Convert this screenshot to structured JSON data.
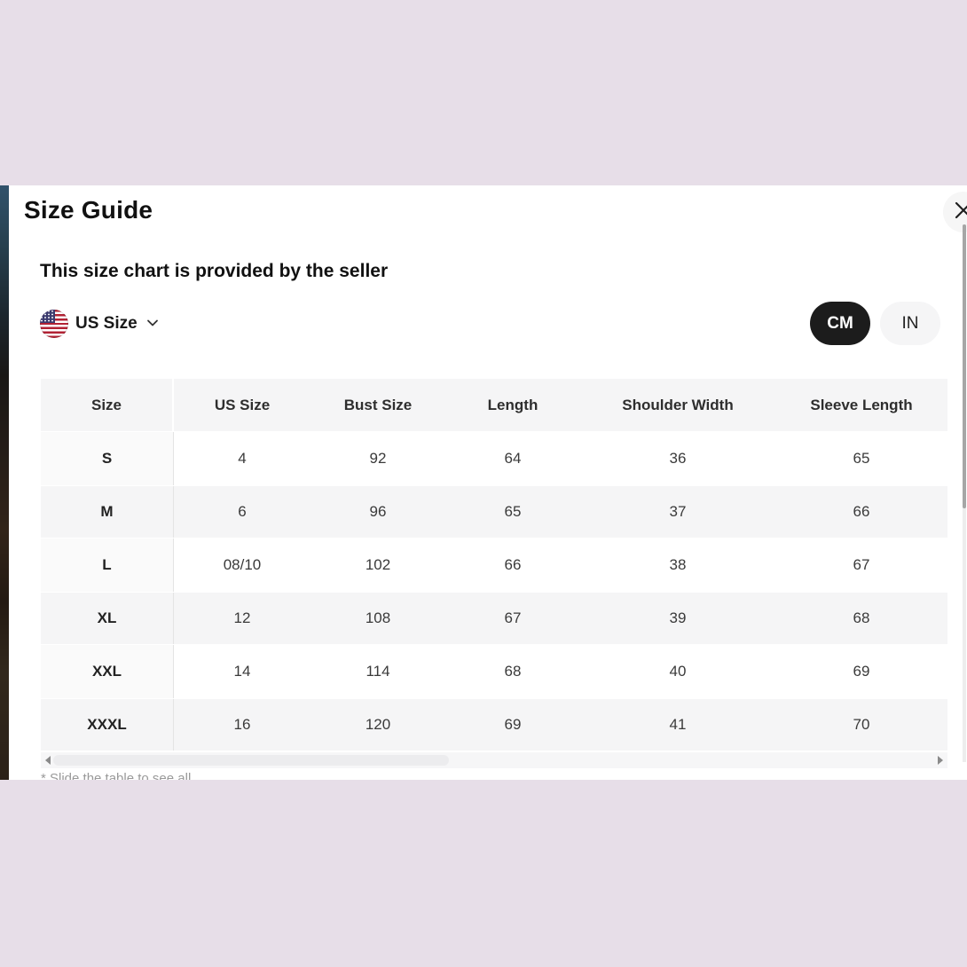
{
  "modal": {
    "title": "Size Guide",
    "subtitle": "This size chart is provided by the seller",
    "region_selector": {
      "label": "US Size",
      "flag_icon": "us-flag-icon",
      "chevron_icon": "chevron-down-icon"
    },
    "unit_toggle": {
      "options": [
        "CM",
        "IN"
      ],
      "selected": "CM"
    },
    "table": {
      "headers": [
        "Size",
        "US Size",
        "Bust Size",
        "Length",
        "Shoulder Width",
        "Sleeve Length"
      ],
      "rows": [
        [
          "S",
          "4",
          "92",
          "64",
          "36",
          "65"
        ],
        [
          "M",
          "6",
          "96",
          "65",
          "37",
          "66"
        ],
        [
          "L",
          "08/10",
          "102",
          "66",
          "38",
          "67"
        ],
        [
          "XL",
          "12",
          "108",
          "67",
          "39",
          "68"
        ],
        [
          "XXL",
          "14",
          "114",
          "68",
          "40",
          "69"
        ],
        [
          "XXXL",
          "16",
          "120",
          "69",
          "41",
          "70"
        ]
      ]
    },
    "hint": "* Slide the table to see all",
    "icons": {
      "close": "close-icon",
      "scroll_left": "scroll-left-arrow-icon",
      "scroll_right": "scroll-right-arrow-icon"
    },
    "colors": {
      "page_background": "#e7dee8",
      "modal_background": "#ffffff",
      "row_alt": "#f5f5f6",
      "selected_unit_bg": "#1c1c1c",
      "flag_red": "#b22234",
      "flag_blue": "#3c3b6e",
      "hint_text": "#999999"
    }
  }
}
